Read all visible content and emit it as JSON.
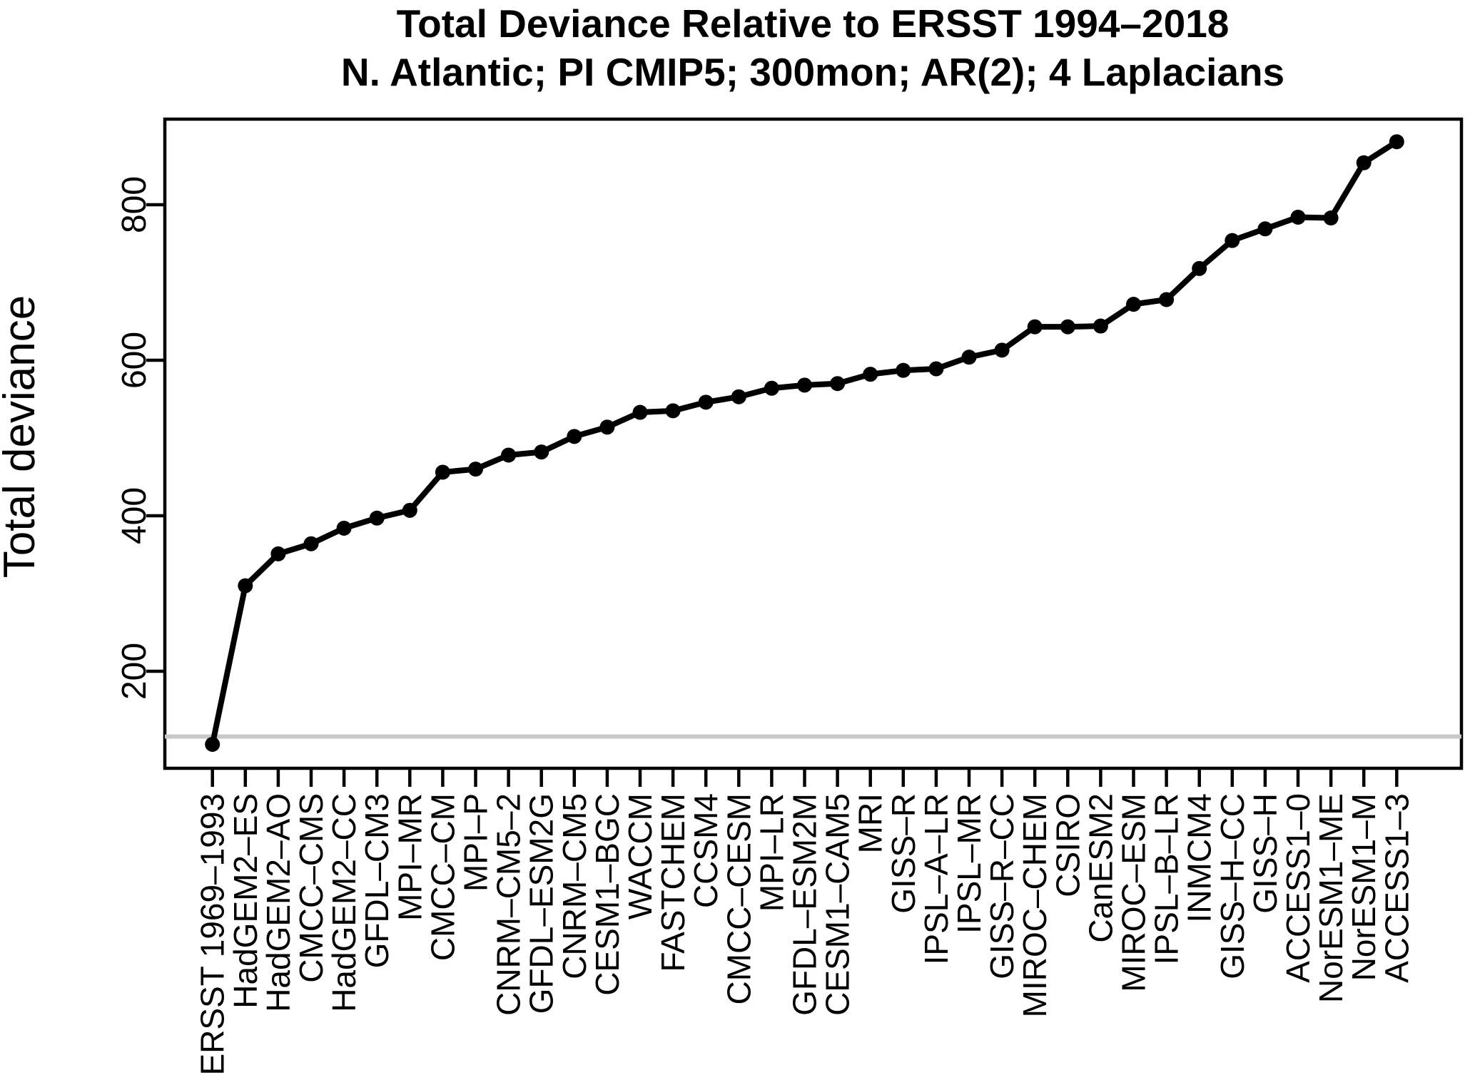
{
  "header": {
    "title": "Total Deviance Relative to ERSST 1994–2018",
    "subtitle": "N. Atlantic; PI CMIP5; 300mon; AR(2); 4 Laplacians"
  },
  "chart_data": {
    "type": "line",
    "title": "Total Deviance Relative to ERSST 1994–2018",
    "subtitle": "N. Atlantic; PI CMIP5; 300mon; AR(2); 4 Laplacians",
    "xlabel": "",
    "ylabel": "Total deviance",
    "categories": [
      "ERSST 1969–1993",
      "HadGEM2–ES",
      "HadGEM2–AO",
      "CMCC–CMS",
      "HadGEM2–CC",
      "GFDL–CM3",
      "MPI–MR",
      "CMCC–CM",
      "MPI–P",
      "CNRM–CM5–2",
      "GFDL–ESM2G",
      "CNRM–CM5",
      "CESM1–BGC",
      "WACCM",
      "FASTCHEM",
      "CCSM4",
      "CMCC–CESM",
      "MPI–LR",
      "GFDL–ESM2M",
      "CESM1–CAM5",
      "MRI",
      "GISS–R",
      "IPSL–A–LR",
      "IPSL–MR",
      "GISS–R–CC",
      "MIROC–CHEM",
      "CSIRO",
      "CanESM2",
      "MIROC–ESM",
      "IPSL–B–LR",
      "INMCM4",
      "GISS–H–CC",
      "GISS–H",
      "ACCESS1–0",
      "NorESM1–ME",
      "NorESM1–M",
      "ACCESS1–3"
    ],
    "values": [
      106,
      310,
      351,
      364,
      384,
      397,
      407,
      456,
      460,
      478,
      482,
      502,
      514,
      533,
      535,
      546,
      553,
      564,
      568,
      570,
      582,
      587,
      589,
      604,
      613,
      643,
      643,
      644,
      672,
      678,
      718,
      754,
      769,
      784,
      783,
      854,
      881
    ],
    "yticks": [
      200,
      400,
      600,
      800
    ],
    "ylim": [
      75,
      910
    ],
    "grid": false,
    "legend": null,
    "marker": "filled-circle",
    "reference_line": {
      "value": 116,
      "color": "#c8c8c8"
    },
    "line_color": "#000000",
    "background": "#ffffff"
  }
}
